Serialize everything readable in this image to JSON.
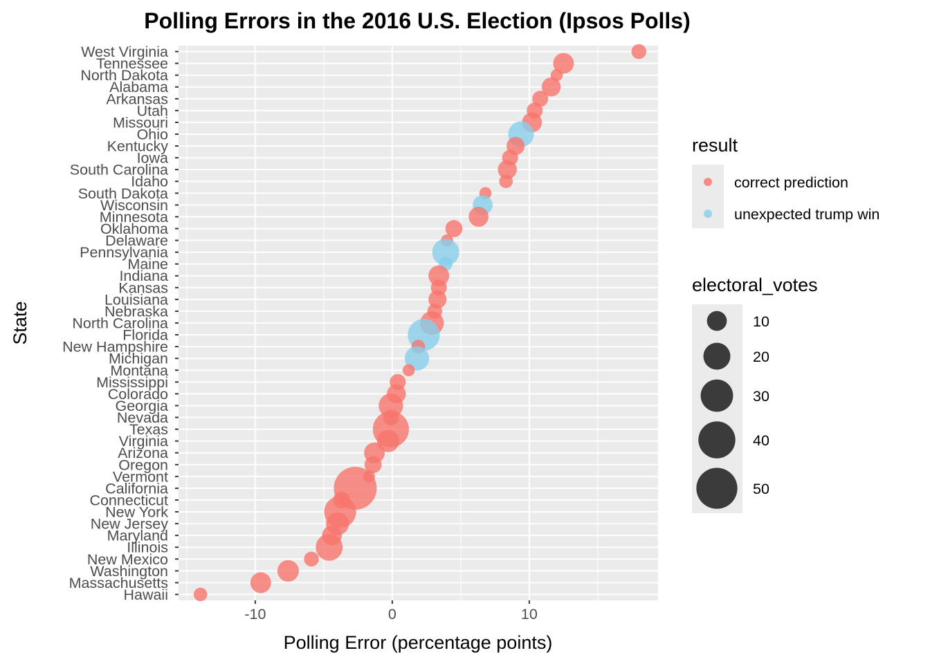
{
  "chart_data": {
    "type": "scatter",
    "title": "Polling Errors in the 2016 U.S. Election (Ipsos Polls)",
    "xlabel": "Polling Error (percentage points)",
    "ylabel": "State",
    "xlim": [
      -15.6,
      19.4
    ],
    "x_ticks": [
      -10,
      0,
      10
    ],
    "x_tick_labels": [
      "-10",
      "0",
      "10"
    ],
    "grid": true,
    "colors": {
      "correct prediction": "#f8766d",
      "unexpected trump win": "#87ceeb"
    },
    "size_legend": {
      "title": "electoral_votes",
      "values": [
        10,
        20,
        30,
        40,
        50
      ],
      "labels": [
        "10",
        "20",
        "30",
        "40",
        "50"
      ]
    },
    "color_legend": {
      "title": "result",
      "entries": [
        "correct prediction",
        "unexpected trump win"
      ]
    },
    "points": [
      {
        "state": "West Virginia",
        "x": 18.0,
        "ev": 5,
        "result": "correct prediction"
      },
      {
        "state": "Tennessee",
        "x": 12.5,
        "ev": 11,
        "result": "correct prediction"
      },
      {
        "state": "North Dakota",
        "x": 12.0,
        "ev": 3,
        "result": "correct prediction"
      },
      {
        "state": "Alabama",
        "x": 11.6,
        "ev": 9,
        "result": "correct prediction"
      },
      {
        "state": "Arkansas",
        "x": 10.8,
        "ev": 6,
        "result": "correct prediction"
      },
      {
        "state": "Utah",
        "x": 10.4,
        "ev": 6,
        "result": "correct prediction"
      },
      {
        "state": "Missouri",
        "x": 10.2,
        "ev": 10,
        "result": "correct prediction"
      },
      {
        "state": "Ohio",
        "x": 9.4,
        "ev": 18,
        "result": "unexpected trump win"
      },
      {
        "state": "Kentucky",
        "x": 9.0,
        "ev": 8,
        "result": "correct prediction"
      },
      {
        "state": "Iowa",
        "x": 8.6,
        "ev": 6,
        "result": "correct prediction"
      },
      {
        "state": "South Carolina",
        "x": 8.4,
        "ev": 9,
        "result": "correct prediction"
      },
      {
        "state": "Idaho",
        "x": 8.3,
        "ev": 4,
        "result": "correct prediction"
      },
      {
        "state": "South Dakota",
        "x": 6.8,
        "ev": 3,
        "result": "correct prediction"
      },
      {
        "state": "Wisconsin",
        "x": 6.6,
        "ev": 10,
        "result": "unexpected trump win"
      },
      {
        "state": "Minnesota",
        "x": 6.3,
        "ev": 10,
        "result": "correct prediction"
      },
      {
        "state": "Oklahoma",
        "x": 4.5,
        "ev": 7,
        "result": "correct prediction"
      },
      {
        "state": "Delaware",
        "x": 4.0,
        "ev": 3,
        "result": "correct prediction"
      },
      {
        "state": "Pennsylvania",
        "x": 3.9,
        "ev": 20,
        "result": "unexpected trump win"
      },
      {
        "state": "Maine",
        "x": 3.9,
        "ev": 4,
        "result": "unexpected trump win"
      },
      {
        "state": "Indiana",
        "x": 3.4,
        "ev": 11,
        "result": "correct prediction"
      },
      {
        "state": "Kansas",
        "x": 3.4,
        "ev": 6,
        "result": "correct prediction"
      },
      {
        "state": "Louisiana",
        "x": 3.3,
        "ev": 8,
        "result": "correct prediction"
      },
      {
        "state": "Nebraska",
        "x": 3.1,
        "ev": 5,
        "result": "correct prediction"
      },
      {
        "state": "North Carolina",
        "x": 2.9,
        "ev": 15,
        "result": "correct prediction"
      },
      {
        "state": "Florida",
        "x": 2.3,
        "ev": 29,
        "result": "unexpected trump win"
      },
      {
        "state": "New Hampshire",
        "x": 1.9,
        "ev": 4,
        "result": "correct prediction"
      },
      {
        "state": "Michigan",
        "x": 1.8,
        "ev": 16,
        "result": "unexpected trump win"
      },
      {
        "state": "Montana",
        "x": 1.2,
        "ev": 3,
        "result": "correct prediction"
      },
      {
        "state": "Mississippi",
        "x": 0.4,
        "ev": 6,
        "result": "correct prediction"
      },
      {
        "state": "Colorado",
        "x": 0.3,
        "ev": 9,
        "result": "correct prediction"
      },
      {
        "state": "Georgia",
        "x": -0.1,
        "ev": 16,
        "result": "correct prediction"
      },
      {
        "state": "Nevada",
        "x": -0.1,
        "ev": 6,
        "result": "correct prediction"
      },
      {
        "state": "Texas",
        "x": -0.1,
        "ev": 38,
        "result": "correct prediction"
      },
      {
        "state": "Virginia",
        "x": -0.3,
        "ev": 13,
        "result": "correct prediction"
      },
      {
        "state": "Arizona",
        "x": -1.3,
        "ev": 11,
        "result": "correct prediction"
      },
      {
        "state": "Oregon",
        "x": -1.4,
        "ev": 7,
        "result": "correct prediction"
      },
      {
        "state": "Vermont",
        "x": -1.7,
        "ev": 3,
        "result": "correct prediction"
      },
      {
        "state": "California",
        "x": -2.7,
        "ev": 55,
        "result": "correct prediction"
      },
      {
        "state": "Connecticut",
        "x": -3.7,
        "ev": 7,
        "result": "correct prediction"
      },
      {
        "state": "New York",
        "x": -3.8,
        "ev": 29,
        "result": "correct prediction"
      },
      {
        "state": "New Jersey",
        "x": -4.0,
        "ev": 14,
        "result": "correct prediction"
      },
      {
        "state": "Maryland",
        "x": -4.4,
        "ev": 10,
        "result": "correct prediction"
      },
      {
        "state": "Illinois",
        "x": -4.6,
        "ev": 20,
        "result": "correct prediction"
      },
      {
        "state": "New Mexico",
        "x": -5.9,
        "ev": 5,
        "result": "correct prediction"
      },
      {
        "state": "Washington",
        "x": -7.6,
        "ev": 12,
        "result": "correct prediction"
      },
      {
        "state": "Massachusetts",
        "x": -9.6,
        "ev": 11,
        "result": "correct prediction"
      },
      {
        "state": "Hawaii",
        "x": -14.0,
        "ev": 4,
        "result": "correct prediction"
      }
    ]
  }
}
